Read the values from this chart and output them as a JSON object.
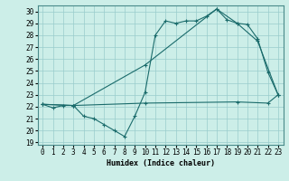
{
  "title": "",
  "xlabel": "Humidex (Indice chaleur)",
  "bg_color": "#cceee8",
  "grid_color": "#99cccc",
  "line_color": "#1a6b6b",
  "xlim": [
    -0.5,
    23.5
  ],
  "ylim": [
    18.8,
    30.5
  ],
  "yticks": [
    19,
    20,
    21,
    22,
    23,
    24,
    25,
    26,
    27,
    28,
    29,
    30
  ],
  "xticks": [
    0,
    1,
    2,
    3,
    4,
    5,
    6,
    7,
    8,
    9,
    10,
    11,
    12,
    13,
    14,
    15,
    16,
    17,
    18,
    19,
    20,
    21,
    22,
    23
  ],
  "line1_x": [
    0,
    1,
    2,
    3,
    4,
    5,
    6,
    7,
    8,
    9,
    10,
    11,
    12,
    13,
    14,
    15,
    16,
    17,
    18,
    19,
    20,
    21,
    22,
    23
  ],
  "line1_y": [
    22.2,
    21.9,
    22.1,
    22.1,
    21.2,
    21.0,
    20.5,
    20.0,
    19.5,
    21.2,
    23.2,
    28.0,
    29.2,
    29.0,
    29.2,
    29.2,
    29.6,
    30.2,
    29.3,
    29.0,
    28.9,
    27.7,
    24.9,
    23.0
  ],
  "line2_x": [
    0,
    3,
    10,
    17,
    19,
    21,
    23
  ],
  "line2_y": [
    22.2,
    22.1,
    25.5,
    30.2,
    29.0,
    27.5,
    23.0
  ],
  "line3_x": [
    0,
    3,
    10,
    19,
    22,
    23
  ],
  "line3_y": [
    22.2,
    22.1,
    22.3,
    22.4,
    22.3,
    23.0
  ]
}
